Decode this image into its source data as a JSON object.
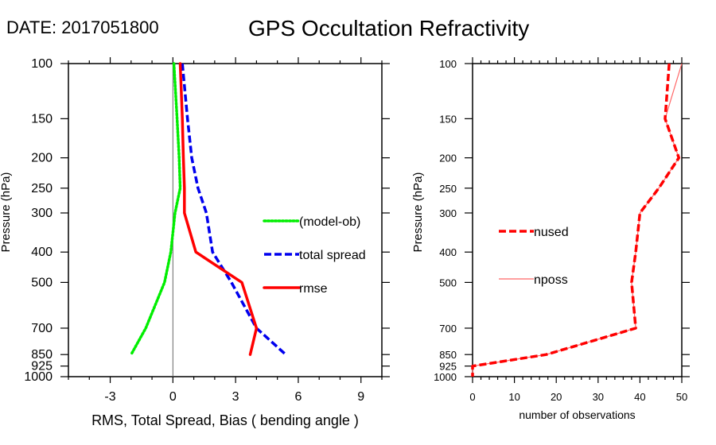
{
  "header": {
    "date_label": "DATE: 2017051800",
    "title": "GPS Occultation Refractivity"
  },
  "chart_data": [
    {
      "type": "line",
      "panel": "left",
      "title": "",
      "xlabel": "RMS, Total Spread, Bias ( bending angle )",
      "ylabel": "Pressure (hPa)",
      "xlim": [
        -5,
        10
      ],
      "ylim": [
        1000,
        100
      ],
      "yscale": "log",
      "xticks": [
        -3,
        0,
        3,
        6,
        9
      ],
      "xtick_labels": [
        "-3",
        "0",
        "3",
        "6",
        "9"
      ],
      "yticks": [
        100,
        150,
        200,
        250,
        300,
        400,
        500,
        700,
        850,
        925,
        1000
      ],
      "ytick_labels": [
        "100",
        "150",
        "200",
        "250",
        "300",
        "400",
        "500",
        "700",
        "850",
        "925",
        "1000"
      ],
      "zero_line": true,
      "grid": false,
      "legend_position": "right-middle",
      "series": [
        {
          "name": "(model-ob)",
          "style": "dotted",
          "color": "#00ee00",
          "pressure": [
            100,
            150,
            200,
            250,
            300,
            400,
            500,
            700,
            850
          ],
          "values": [
            0.05,
            0.2,
            0.3,
            0.35,
            0.1,
            -0.1,
            -0.4,
            -1.3,
            -2.0
          ]
        },
        {
          "name": "total spread",
          "style": "dashed",
          "color": "#0000ee",
          "pressure": [
            100,
            150,
            200,
            250,
            300,
            400,
            500,
            700,
            850
          ],
          "values": [
            0.45,
            0.7,
            0.9,
            1.2,
            1.6,
            1.9,
            2.8,
            4.0,
            5.4
          ]
        },
        {
          "name": "rmse",
          "style": "solid",
          "color": "#ff0000",
          "pressure": [
            100,
            150,
            200,
            250,
            300,
            400,
            500,
            700,
            850
          ],
          "values": [
            0.35,
            0.45,
            0.5,
            0.55,
            0.55,
            1.1,
            3.3,
            4.0,
            3.7
          ]
        }
      ]
    },
    {
      "type": "line",
      "panel": "right",
      "title": "",
      "xlabel": "number of observations",
      "ylabel": "Pressure (hPa)",
      "xlim": [
        0,
        50
      ],
      "ylim": [
        1000,
        100
      ],
      "yscale": "log",
      "xticks": [
        0,
        10,
        20,
        30,
        40,
        50
      ],
      "xtick_labels": [
        "0",
        "10",
        "20",
        "30",
        "40",
        "50"
      ],
      "yticks": [
        100,
        150,
        200,
        250,
        300,
        400,
        500,
        700,
        850,
        925,
        1000
      ],
      "ytick_labels": [
        "100",
        "150",
        "200",
        "250",
        "300",
        "400",
        "500",
        "700",
        "850",
        "925",
        "1000"
      ],
      "grid": false,
      "legend_position": "left-middle",
      "series": [
        {
          "name": "nused",
          "style": "dashed",
          "color": "#ff0000",
          "pressure": [
            100,
            150,
            200,
            250,
            300,
            400,
            500,
            700,
            850,
            925,
            1000
          ],
          "values": [
            47,
            46,
            49.3,
            44.5,
            40,
            39,
            38,
            39,
            17.6,
            0,
            0
          ]
        },
        {
          "name": "nposs",
          "style": "thin",
          "color": "#ff6666",
          "pressure": [
            100,
            150,
            200,
            250,
            300,
            400,
            500,
            700,
            850,
            925,
            1000
          ],
          "values": [
            50,
            46,
            49.3,
            44.5,
            40,
            39,
            38,
            39,
            17.6,
            0,
            0
          ]
        }
      ]
    }
  ]
}
